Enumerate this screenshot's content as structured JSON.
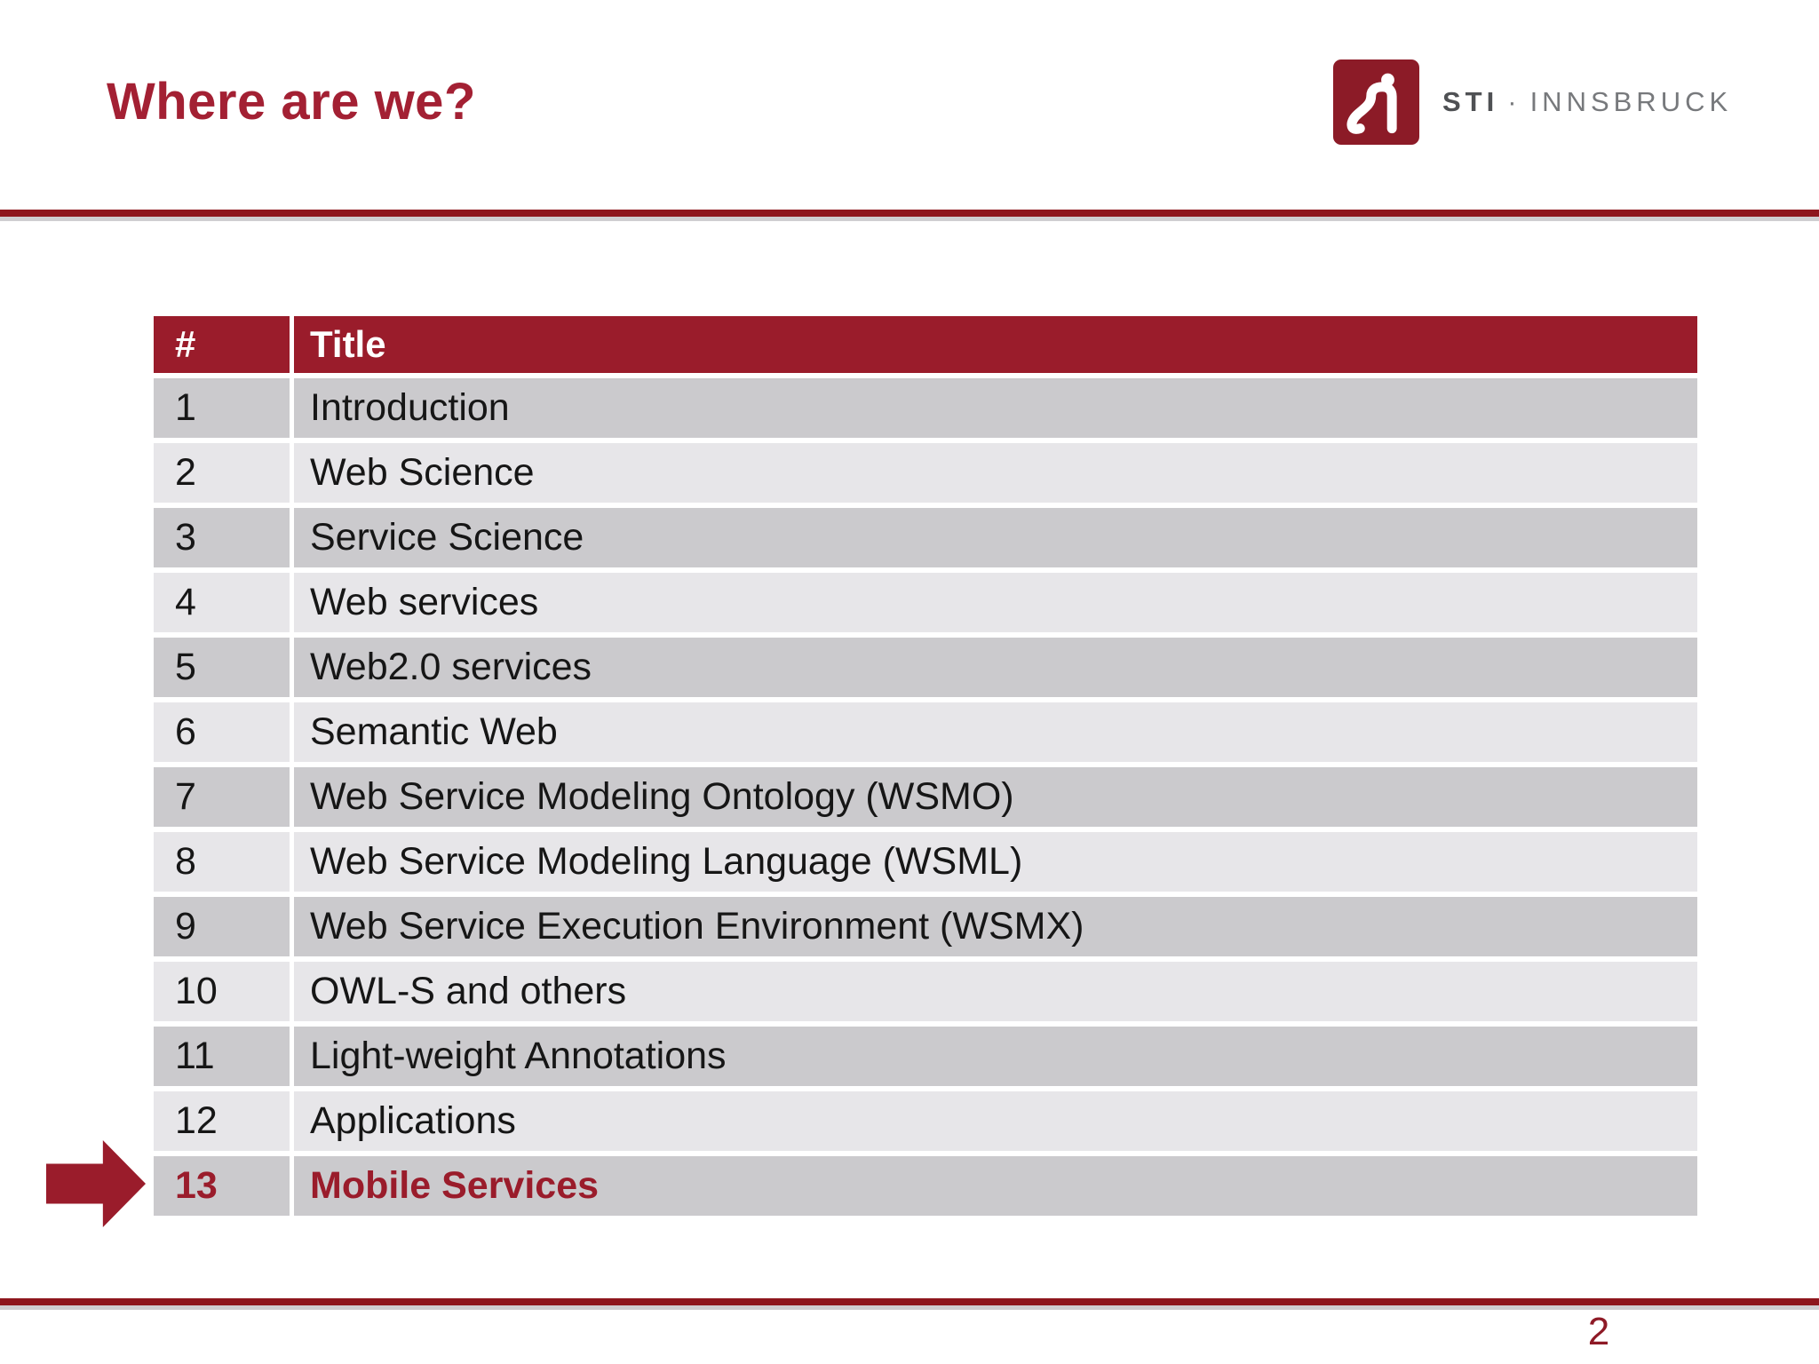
{
  "slide": {
    "title": "Where are we?",
    "page_number": "2"
  },
  "logo": {
    "brand": "STI",
    "separator": "·",
    "location": "INNSBRUCK"
  },
  "table": {
    "col_num": "#",
    "col_title": "Title",
    "rows": [
      {
        "num": "1",
        "title": "Introduction",
        "current": false
      },
      {
        "num": "2",
        "title": "Web Science",
        "current": false
      },
      {
        "num": "3",
        "title": "Service Science",
        "current": false
      },
      {
        "num": "4",
        "title": "Web services",
        "current": false
      },
      {
        "num": "5",
        "title": "Web2.0 services",
        "current": false
      },
      {
        "num": "6",
        "title": "Semantic Web",
        "current": false
      },
      {
        "num": "7",
        "title": "Web Service Modeling Ontology (WSMO)",
        "current": false
      },
      {
        "num": "8",
        "title": "Web Service Modeling Language (WSML)",
        "current": false
      },
      {
        "num": "9",
        "title": "Web Service Execution Environment (WSMX)",
        "current": false
      },
      {
        "num": "10",
        "title": "OWL-S and others",
        "current": false
      },
      {
        "num": "11",
        "title": "Light-weight Annotations",
        "current": false
      },
      {
        "num": "12",
        "title": "Applications",
        "current": false
      },
      {
        "num": "13",
        "title": "Mobile Services",
        "current": true
      }
    ]
  },
  "colors": {
    "brand_red": "#9A1C2B",
    "rule_red": "#8E161D",
    "logo_red": "#8C1B27",
    "title_red": "#A32033",
    "row_odd": "#CBCACD",
    "row_even": "#E7E6E9",
    "header_text": "#FFFFFF",
    "body_text": "#161616"
  }
}
